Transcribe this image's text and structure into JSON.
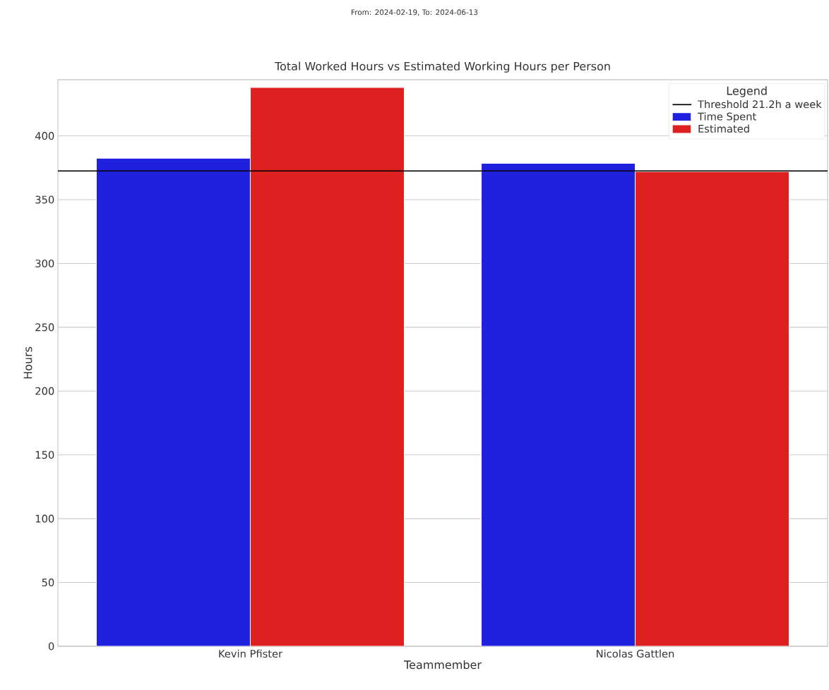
{
  "chart_data": {
    "type": "bar",
    "title": "Total Worked Hours vs Estimated Working Hours per Person",
    "subtitle": "From: 2024-02-19, To: 2024-06-13",
    "xlabel": "Teammember",
    "ylabel": "Hours",
    "legend_title": "Legend",
    "categories": [
      "Kevin Pfister",
      "Nicolas Gattlen"
    ],
    "series": [
      {
        "name": "Time Spent",
        "color": "#2020df",
        "values": [
          382.5,
          378.5
        ]
      },
      {
        "name": "Estimated",
        "color": "#df2020",
        "values": [
          438,
          372
        ]
      }
    ],
    "ylim": [
      0,
      444
    ],
    "yticks": [
      0,
      50,
      100,
      150,
      200,
      250,
      300,
      350,
      400
    ],
    "ref_lines": [
      {
        "axis": "y",
        "value": 372.5,
        "label": "Threshold 21.2h a week",
        "color": "#000000"
      }
    ],
    "grid": "y",
    "legend": "top right"
  }
}
